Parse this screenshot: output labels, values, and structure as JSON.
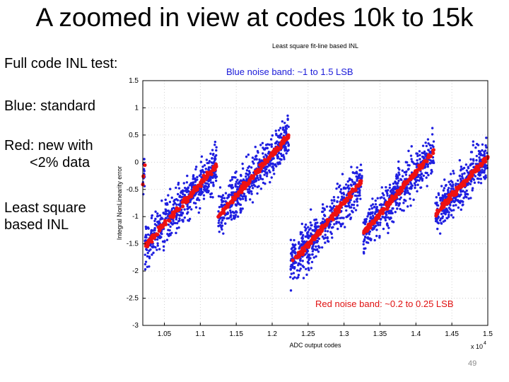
{
  "slide": {
    "title": "A zoomed in view at codes 10k to 15k",
    "bullets": [
      [
        "Full code INL test:"
      ],
      [
        "Blue: standard"
      ],
      [
        "Red: new with",
        "<2% data"
      ],
      [
        "Least square",
        "based INL"
      ]
    ],
    "page_number": "49"
  },
  "chart_data": {
    "type": "scatter",
    "title": "Least square fit-line based INL",
    "xlabel": "ADC output codes",
    "ylabel": "Integral NonLinearity error",
    "x_multiplier_label": "x 10",
    "x_multiplier_exponent": "4",
    "xlim": [
      1.02,
      1.5
    ],
    "ylim": [
      -3,
      1.5
    ],
    "xticks": [
      "1.05",
      "1.1",
      "1.15",
      "1.2",
      "1.25",
      "1.3",
      "1.35",
      "1.4",
      "1.45",
      "1.5"
    ],
    "yticks": [
      "1.5",
      "1",
      "0.5",
      "0",
      "-0.5",
      "-1",
      "-1.5",
      "-2",
      "-2.5",
      "-3"
    ],
    "grid": true,
    "series": [
      {
        "name": "Blue: standard",
        "color": "#1f1fe0",
        "noise_band": [
          -0.6,
          0.6
        ],
        "segments": [
          {
            "x0": 1.02,
            "y0": -0.35,
            "x1": 1.023,
            "y1": -0.05
          },
          {
            "x0": 1.023,
            "y0": -1.55,
            "x1": 1.123,
            "y1": -0.05
          },
          {
            "x0": 1.125,
            "y0": -1.0,
            "x1": 1.223,
            "y1": 0.5
          },
          {
            "x0": 1.225,
            "y0": -1.9,
            "x1": 1.325,
            "y1": -0.35
          },
          {
            "x0": 1.327,
            "y0": -1.3,
            "x1": 1.425,
            "y1": 0.2
          },
          {
            "x0": 1.427,
            "y0": -0.95,
            "x1": 1.5,
            "y1": 0.1
          }
        ]
      },
      {
        "name": "Red: new with <2% data",
        "color": "#ee1111",
        "noise_band": [
          -0.11,
          0.11
        ],
        "segments": [
          {
            "x0": 1.02,
            "y0": -0.35,
            "x1": 1.023,
            "y1": -0.05
          },
          {
            "x0": 1.023,
            "y0": -1.55,
            "x1": 1.123,
            "y1": -0.05
          },
          {
            "x0": 1.125,
            "y0": -1.0,
            "x1": 1.223,
            "y1": 0.5
          },
          {
            "x0": 1.225,
            "y0": -1.9,
            "x1": 1.325,
            "y1": -0.35
          },
          {
            "x0": 1.327,
            "y0": -1.3,
            "x1": 1.425,
            "y1": 0.2
          },
          {
            "x0": 1.427,
            "y0": -0.95,
            "x1": 1.5,
            "y1": 0.1
          }
        ]
      }
    ],
    "annotations": [
      {
        "text": "Blue noise band: ~1 to 1.5 LSB",
        "color": "#1a1ad9"
      },
      {
        "text": "Red noise band: ~0.2 to 0.25 LSB",
        "color": "#e01010"
      }
    ]
  }
}
